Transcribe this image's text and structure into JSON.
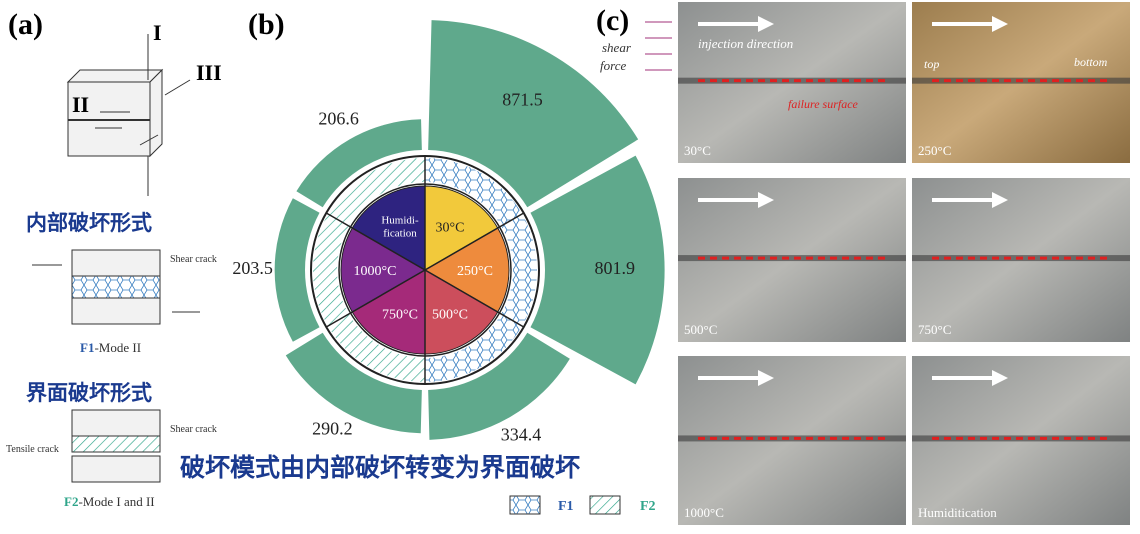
{
  "panel_a": {
    "label": "(a)",
    "axis_labels": [
      "I",
      "II",
      "III"
    ],
    "internal_title": "内部破坏形式",
    "f1_crack": "Shear crack",
    "f1_code": "F1",
    "f1_caption": "-Mode II",
    "interface_title": "界面破坏形式",
    "f2_shear": "Shear crack",
    "f2_tensile": "Tensile crack",
    "f2_code": "F2",
    "f2_caption": "-Mode I and II"
  },
  "conclusion": "破坏模式由内部破坏转变为界面破坏",
  "panel_b": {
    "label": "(b)",
    "categories": [
      "30°C",
      "250°C",
      "500°C",
      "750°C",
      "1000°C",
      [
        "Humidi-",
        "fication"
      ]
    ],
    "values": [
      871.5,
      801.9,
      334.4,
      290.2,
      203.5,
      206.6
    ],
    "sector_colors": [
      "#f2c93b",
      "#ee8b3d",
      "#cc4e5c",
      "#a52a79",
      "#7b2a8e",
      "#2e2380"
    ],
    "bar_color": "#5fa98c",
    "ring_modes": [
      "F1",
      "F1",
      "F1",
      "F2",
      "F2",
      "F2"
    ],
    "legend": [
      "F1",
      "F2"
    ]
  },
  "panel_c": {
    "label": "(c)",
    "shear_force": [
      "shear",
      "force"
    ],
    "injection_direction": "injection direction",
    "failure_surface": "failure surface",
    "top": "top",
    "bottom": "bottom",
    "photos": [
      "30°C",
      "250°C",
      "500°C",
      "750°C",
      "1000°C",
      "Humiditication"
    ]
  }
}
